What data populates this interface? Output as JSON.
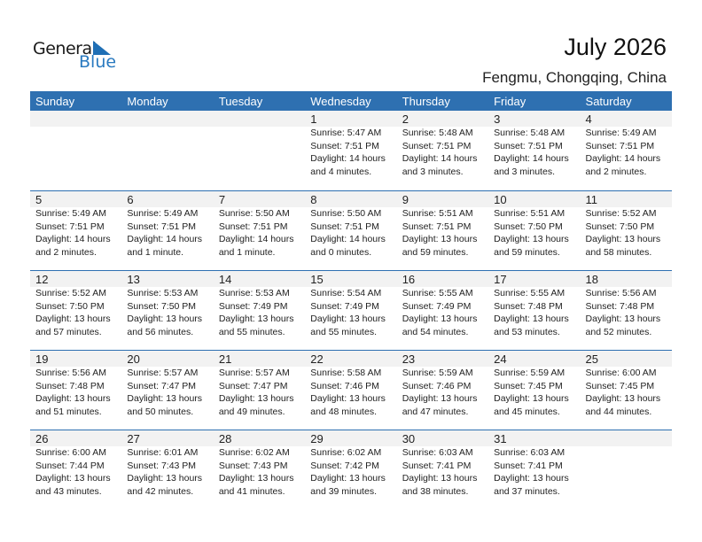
{
  "logo": {
    "text1": "General",
    "text2": "Blue"
  },
  "title": "July 2026",
  "location": "Fengmu, Chongqing, China",
  "colors": {
    "header": "#2e70b1",
    "date_band": "#f2f2f2"
  },
  "days": [
    "Sunday",
    "Monday",
    "Tuesday",
    "Wednesday",
    "Thursday",
    "Friday",
    "Saturday"
  ],
  "weeks": [
    [
      null,
      null,
      null,
      {
        "date": "1",
        "sunrise": "Sunrise: 5:47 AM",
        "sunset": "Sunset: 7:51 PM",
        "daylight1": "Daylight: 14 hours",
        "daylight2": "and 4 minutes."
      },
      {
        "date": "2",
        "sunrise": "Sunrise: 5:48 AM",
        "sunset": "Sunset: 7:51 PM",
        "daylight1": "Daylight: 14 hours",
        "daylight2": "and 3 minutes."
      },
      {
        "date": "3",
        "sunrise": "Sunrise: 5:48 AM",
        "sunset": "Sunset: 7:51 PM",
        "daylight1": "Daylight: 14 hours",
        "daylight2": "and 3 minutes."
      },
      {
        "date": "4",
        "sunrise": "Sunrise: 5:49 AM",
        "sunset": "Sunset: 7:51 PM",
        "daylight1": "Daylight: 14 hours",
        "daylight2": "and 2 minutes."
      }
    ],
    [
      {
        "date": "5",
        "sunrise": "Sunrise: 5:49 AM",
        "sunset": "Sunset: 7:51 PM",
        "daylight1": "Daylight: 14 hours",
        "daylight2": "and 2 minutes."
      },
      {
        "date": "6",
        "sunrise": "Sunrise: 5:49 AM",
        "sunset": "Sunset: 7:51 PM",
        "daylight1": "Daylight: 14 hours",
        "daylight2": "and 1 minute."
      },
      {
        "date": "7",
        "sunrise": "Sunrise: 5:50 AM",
        "sunset": "Sunset: 7:51 PM",
        "daylight1": "Daylight: 14 hours",
        "daylight2": "and 1 minute."
      },
      {
        "date": "8",
        "sunrise": "Sunrise: 5:50 AM",
        "sunset": "Sunset: 7:51 PM",
        "daylight1": "Daylight: 14 hours",
        "daylight2": "and 0 minutes."
      },
      {
        "date": "9",
        "sunrise": "Sunrise: 5:51 AM",
        "sunset": "Sunset: 7:51 PM",
        "daylight1": "Daylight: 13 hours",
        "daylight2": "and 59 minutes."
      },
      {
        "date": "10",
        "sunrise": "Sunrise: 5:51 AM",
        "sunset": "Sunset: 7:50 PM",
        "daylight1": "Daylight: 13 hours",
        "daylight2": "and 59 minutes."
      },
      {
        "date": "11",
        "sunrise": "Sunrise: 5:52 AM",
        "sunset": "Sunset: 7:50 PM",
        "daylight1": "Daylight: 13 hours",
        "daylight2": "and 58 minutes."
      }
    ],
    [
      {
        "date": "12",
        "sunrise": "Sunrise: 5:52 AM",
        "sunset": "Sunset: 7:50 PM",
        "daylight1": "Daylight: 13 hours",
        "daylight2": "and 57 minutes."
      },
      {
        "date": "13",
        "sunrise": "Sunrise: 5:53 AM",
        "sunset": "Sunset: 7:50 PM",
        "daylight1": "Daylight: 13 hours",
        "daylight2": "and 56 minutes."
      },
      {
        "date": "14",
        "sunrise": "Sunrise: 5:53 AM",
        "sunset": "Sunset: 7:49 PM",
        "daylight1": "Daylight: 13 hours",
        "daylight2": "and 55 minutes."
      },
      {
        "date": "15",
        "sunrise": "Sunrise: 5:54 AM",
        "sunset": "Sunset: 7:49 PM",
        "daylight1": "Daylight: 13 hours",
        "daylight2": "and 55 minutes."
      },
      {
        "date": "16",
        "sunrise": "Sunrise: 5:55 AM",
        "sunset": "Sunset: 7:49 PM",
        "daylight1": "Daylight: 13 hours",
        "daylight2": "and 54 minutes."
      },
      {
        "date": "17",
        "sunrise": "Sunrise: 5:55 AM",
        "sunset": "Sunset: 7:48 PM",
        "daylight1": "Daylight: 13 hours",
        "daylight2": "and 53 minutes."
      },
      {
        "date": "18",
        "sunrise": "Sunrise: 5:56 AM",
        "sunset": "Sunset: 7:48 PM",
        "daylight1": "Daylight: 13 hours",
        "daylight2": "and 52 minutes."
      }
    ],
    [
      {
        "date": "19",
        "sunrise": "Sunrise: 5:56 AM",
        "sunset": "Sunset: 7:48 PM",
        "daylight1": "Daylight: 13 hours",
        "daylight2": "and 51 minutes."
      },
      {
        "date": "20",
        "sunrise": "Sunrise: 5:57 AM",
        "sunset": "Sunset: 7:47 PM",
        "daylight1": "Daylight: 13 hours",
        "daylight2": "and 50 minutes."
      },
      {
        "date": "21",
        "sunrise": "Sunrise: 5:57 AM",
        "sunset": "Sunset: 7:47 PM",
        "daylight1": "Daylight: 13 hours",
        "daylight2": "and 49 minutes."
      },
      {
        "date": "22",
        "sunrise": "Sunrise: 5:58 AM",
        "sunset": "Sunset: 7:46 PM",
        "daylight1": "Daylight: 13 hours",
        "daylight2": "and 48 minutes."
      },
      {
        "date": "23",
        "sunrise": "Sunrise: 5:59 AM",
        "sunset": "Sunset: 7:46 PM",
        "daylight1": "Daylight: 13 hours",
        "daylight2": "and 47 minutes."
      },
      {
        "date": "24",
        "sunrise": "Sunrise: 5:59 AM",
        "sunset": "Sunset: 7:45 PM",
        "daylight1": "Daylight: 13 hours",
        "daylight2": "and 45 minutes."
      },
      {
        "date": "25",
        "sunrise": "Sunrise: 6:00 AM",
        "sunset": "Sunset: 7:45 PM",
        "daylight1": "Daylight: 13 hours",
        "daylight2": "and 44 minutes."
      }
    ],
    [
      {
        "date": "26",
        "sunrise": "Sunrise: 6:00 AM",
        "sunset": "Sunset: 7:44 PM",
        "daylight1": "Daylight: 13 hours",
        "daylight2": "and 43 minutes."
      },
      {
        "date": "27",
        "sunrise": "Sunrise: 6:01 AM",
        "sunset": "Sunset: 7:43 PM",
        "daylight1": "Daylight: 13 hours",
        "daylight2": "and 42 minutes."
      },
      {
        "date": "28",
        "sunrise": "Sunrise: 6:02 AM",
        "sunset": "Sunset: 7:43 PM",
        "daylight1": "Daylight: 13 hours",
        "daylight2": "and 41 minutes."
      },
      {
        "date": "29",
        "sunrise": "Sunrise: 6:02 AM",
        "sunset": "Sunset: 7:42 PM",
        "daylight1": "Daylight: 13 hours",
        "daylight2": "and 39 minutes."
      },
      {
        "date": "30",
        "sunrise": "Sunrise: 6:03 AM",
        "sunset": "Sunset: 7:41 PM",
        "daylight1": "Daylight: 13 hours",
        "daylight2": "and 38 minutes."
      },
      {
        "date": "31",
        "sunrise": "Sunrise: 6:03 AM",
        "sunset": "Sunset: 7:41 PM",
        "daylight1": "Daylight: 13 hours",
        "daylight2": "and 37 minutes."
      },
      null
    ]
  ]
}
